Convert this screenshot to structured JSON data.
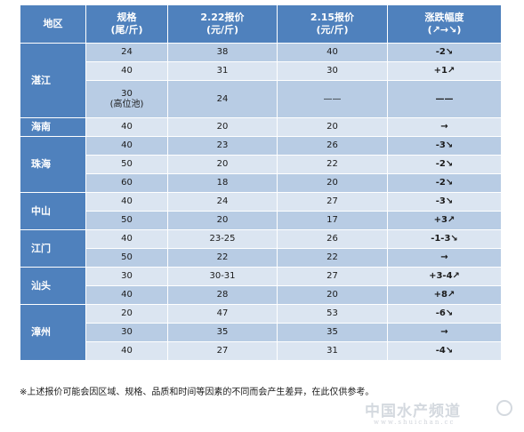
{
  "header": {
    "region": "地区",
    "spec_line1": "规格",
    "spec_line2": "(尾/斤)",
    "price_new_line1": "2.22报价",
    "price_new_line2": "(元/斤)",
    "price_old_line1": "2.15报价",
    "price_old_line2": "(元/斤)",
    "change_line1": "涨跌幅度",
    "change_line2": "(↗→↘)"
  },
  "regions": [
    {
      "name": "湛江",
      "rows": [
        {
          "spec": "24",
          "spec2": "",
          "new": "38",
          "old": "40",
          "change": "-2↘",
          "dir": "down"
        },
        {
          "spec": "40",
          "spec2": "",
          "new": "31",
          "old": "30",
          "change": "+1↗",
          "dir": "up"
        },
        {
          "spec": "30",
          "spec2": "(高位池)",
          "new": "24",
          "old": "——",
          "change": "——",
          "dir": "flat"
        }
      ]
    },
    {
      "name": "海南",
      "rows": [
        {
          "spec": "40",
          "spec2": "",
          "new": "20",
          "old": "20",
          "change": "→",
          "dir": "flat"
        }
      ]
    },
    {
      "name": "珠海",
      "rows": [
        {
          "spec": "40",
          "spec2": "",
          "new": "23",
          "old": "26",
          "change": "-3↘",
          "dir": "down"
        },
        {
          "spec": "50",
          "spec2": "",
          "new": "20",
          "old": "22",
          "change": "-2↘",
          "dir": "down"
        },
        {
          "spec": "60",
          "spec2": "",
          "new": "18",
          "old": "20",
          "change": "-2↘",
          "dir": "down"
        }
      ]
    },
    {
      "name": "中山",
      "rows": [
        {
          "spec": "40",
          "spec2": "",
          "new": "24",
          "old": "27",
          "change": "-3↘",
          "dir": "down"
        },
        {
          "spec": "50",
          "spec2": "",
          "new": "20",
          "old": "17",
          "change": "+3↗",
          "dir": "up"
        }
      ]
    },
    {
      "name": "江门",
      "rows": [
        {
          "spec": "40",
          "spec2": "",
          "new": "23-25",
          "old": "26",
          "change": "-1-3↘",
          "dir": "down"
        },
        {
          "spec": "50",
          "spec2": "",
          "new": "22",
          "old": "22",
          "change": "→",
          "dir": "flat"
        }
      ]
    },
    {
      "name": "汕头",
      "rows": [
        {
          "spec": "30",
          "spec2": "",
          "new": "30-31",
          "old": "27",
          "change": "+3-4↗",
          "dir": "up"
        },
        {
          "spec": "40",
          "spec2": "",
          "new": "28",
          "old": "20",
          "change": "+8↗",
          "dir": "up"
        }
      ]
    },
    {
      "name": "漳州",
      "rows": [
        {
          "spec": "20",
          "spec2": "",
          "new": "47",
          "old": "53",
          "change": "-6↘",
          "dir": "down"
        },
        {
          "spec": "30",
          "spec2": "",
          "new": "35",
          "old": "35",
          "change": "→",
          "dir": "flat"
        },
        {
          "spec": "40",
          "spec2": "",
          "new": "27",
          "old": "31",
          "change": "-4↘",
          "dir": "down"
        }
      ]
    }
  ],
  "colors": {
    "header_bg": "#4f81bd",
    "row_dark": "#b8cce4",
    "row_light": "#dbe5f1",
    "up": "#e3001b",
    "down": "#4f8f2f"
  },
  "note": "※上述报价可能会因区域、规格、品质和时间等因素的不同而会产生差异，在此仅供参考。",
  "watermark": {
    "title": "中国水产频道",
    "subtitle": "www.shuichan.cc"
  }
}
